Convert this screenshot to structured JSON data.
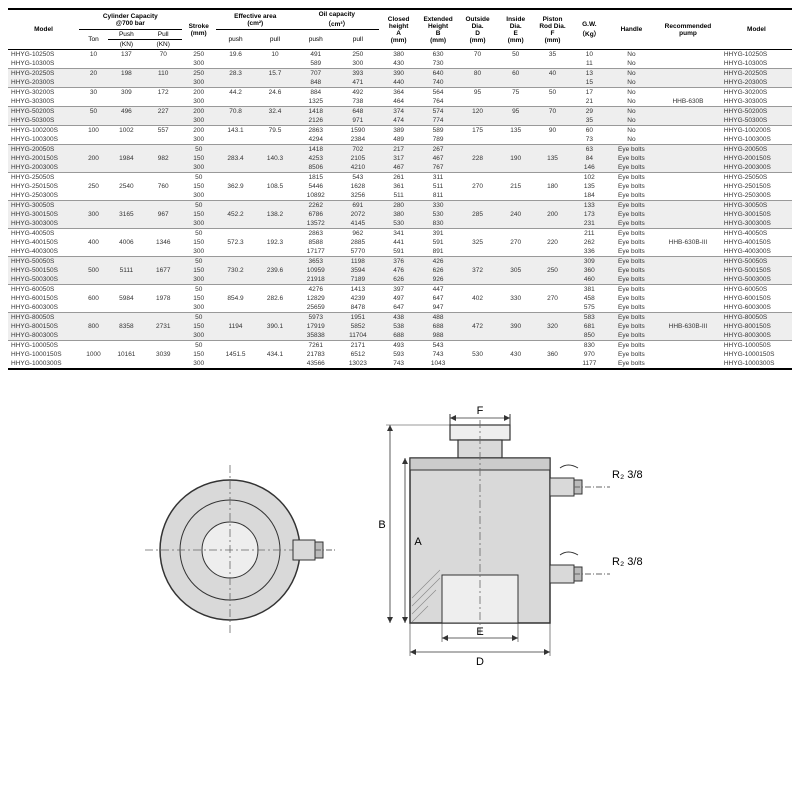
{
  "table": {
    "headers": {
      "model": "Model",
      "cap": "Cylinder Capacity",
      "cap_sub": "@700 bar",
      "ton": "Ton",
      "push": "Push",
      "push_u": "(KN)",
      "pull": "Pull",
      "pull_u": "(KN)",
      "stroke": "Stroke",
      "stroke_u": "(mm)",
      "eff": "Effective area",
      "eff_u": "(cm²)",
      "eff_push": "push",
      "eff_pull": "pull",
      "oil": "Oil capacity",
      "oil_u": "（cm³）",
      "oil_push": "push",
      "oil_pull": "pull",
      "closed": "Closed",
      "closed2": "height",
      "a": "A",
      "a_u": "(mm)",
      "ext": "Extended",
      "ext2": "Height",
      "b": "B",
      "b_u": "(mm)",
      "od": "Outside",
      "od2": "Dia.",
      "d": "D",
      "d_u": "(mm)",
      "id": "Inside",
      "id2": "Dia.",
      "e": "E",
      "e_u": "(mm)",
      "pr": "Piston",
      "pr2": "Rod Dia.",
      "f": "F",
      "f_u": "(mm)",
      "gw": "G.W.",
      "gw_u": "（Kg）",
      "handle": "Handle",
      "pump": "Recommended",
      "pump2": "pump"
    },
    "rows": [
      {
        "m": "HHYG-10250S",
        "ton": "10",
        "pk": "137",
        "pl": "70",
        "st": "250",
        "ep": "19.6",
        "el": "10",
        "op": "491",
        "ol": "250",
        "a": "380",
        "b": "630",
        "d": "70",
        "e": "50",
        "f": "35",
        "g": "10",
        "h": "No",
        "p": "",
        "shade": false,
        "gs": true
      },
      {
        "m": "HHYG-10300S",
        "ton": "",
        "pk": "",
        "pl": "",
        "st": "300",
        "ep": "",
        "el": "",
        "op": "589",
        "ol": "300",
        "a": "430",
        "b": "730",
        "d": "",
        "e": "",
        "f": "",
        "g": "11",
        "h": "No",
        "p": "",
        "shade": false,
        "gs": false
      },
      {
        "m": "HHYG-20250S",
        "ton": "20",
        "pk": "198",
        "pl": "110",
        "st": "250",
        "ep": "28.3",
        "el": "15.7",
        "op": "707",
        "ol": "393",
        "a": "390",
        "b": "640",
        "d": "80",
        "e": "60",
        "f": "40",
        "g": "13",
        "h": "No",
        "p": "",
        "shade": true,
        "gs": true
      },
      {
        "m": "HHYG-20300S",
        "ton": "",
        "pk": "",
        "pl": "",
        "st": "300",
        "ep": "",
        "el": "",
        "op": "848",
        "ol": "471",
        "a": "440",
        "b": "740",
        "d": "",
        "e": "",
        "f": "",
        "g": "15",
        "h": "No",
        "p": "",
        "shade": true,
        "gs": false
      },
      {
        "m": "HHYG-30200S",
        "ton": "30",
        "pk": "309",
        "pl": "172",
        "st": "200",
        "ep": "44.2",
        "el": "24.6",
        "op": "884",
        "ol": "492",
        "a": "364",
        "b": "564",
        "d": "95",
        "e": "75",
        "f": "50",
        "g": "17",
        "h": "No",
        "p": "",
        "shade": false,
        "gs": true
      },
      {
        "m": "HHYG-30300S",
        "ton": "",
        "pk": "",
        "pl": "",
        "st": "300",
        "ep": "",
        "el": "",
        "op": "1325",
        "ol": "738",
        "a": "464",
        "b": "764",
        "d": "",
        "e": "",
        "f": "",
        "g": "21",
        "h": "No",
        "p": "HHB-630B",
        "shade": false,
        "gs": false
      },
      {
        "m": "HHYG-50200S",
        "ton": "50",
        "pk": "496",
        "pl": "227",
        "st": "200",
        "ep": "70.8",
        "el": "32.4",
        "op": "1418",
        "ol": "648",
        "a": "374",
        "b": "574",
        "d": "120",
        "e": "95",
        "f": "70",
        "g": "29",
        "h": "No",
        "p": "",
        "shade": true,
        "gs": true
      },
      {
        "m": "HHYG-50300S",
        "ton": "",
        "pk": "",
        "pl": "",
        "st": "300",
        "ep": "",
        "el": "",
        "op": "2126",
        "ol": "971",
        "a": "474",
        "b": "774",
        "d": "",
        "e": "",
        "f": "",
        "g": "35",
        "h": "No",
        "p": "",
        "shade": true,
        "gs": false
      },
      {
        "m": "HHYG-100200S",
        "ton": "100",
        "pk": "1002",
        "pl": "557",
        "st": "200",
        "ep": "143.1",
        "el": "79.5",
        "op": "2863",
        "ol": "1590",
        "a": "389",
        "b": "589",
        "d": "175",
        "e": "135",
        "f": "90",
        "g": "60",
        "h": "No",
        "p": "",
        "shade": false,
        "gs": true
      },
      {
        "m": "HHYG-100300S",
        "ton": "",
        "pk": "",
        "pl": "",
        "st": "300",
        "ep": "",
        "el": "",
        "op": "4294",
        "ol": "2384",
        "a": "489",
        "b": "789",
        "d": "",
        "e": "",
        "f": "",
        "g": "73",
        "h": "No",
        "p": "",
        "shade": false,
        "gs": false
      },
      {
        "m": "HHYG-20050S",
        "ton": "",
        "pk": "",
        "pl": "",
        "st": "50",
        "ep": "",
        "el": "",
        "op": "1418",
        "ol": "702",
        "a": "217",
        "b": "267",
        "d": "",
        "e": "",
        "f": "",
        "g": "63",
        "h": "Eye bolts",
        "p": "",
        "shade": true,
        "gs": true
      },
      {
        "m": "HHYG-200150S",
        "ton": "200",
        "pk": "1984",
        "pl": "982",
        "st": "150",
        "ep": "283.4",
        "el": "140.3",
        "op": "4253",
        "ol": "2105",
        "a": "317",
        "b": "467",
        "d": "228",
        "e": "190",
        "f": "135",
        "g": "84",
        "h": "Eye bolts",
        "p": "",
        "shade": true,
        "gs": false
      },
      {
        "m": "HHYG-200300S",
        "ton": "",
        "pk": "",
        "pl": "",
        "st": "300",
        "ep": "",
        "el": "",
        "op": "8506",
        "ol": "4210",
        "a": "467",
        "b": "767",
        "d": "",
        "e": "",
        "f": "",
        "g": "146",
        "h": "Eye bolts",
        "p": "",
        "shade": true,
        "gs": false
      },
      {
        "m": "HHYG-25050S",
        "ton": "",
        "pk": "",
        "pl": "",
        "st": "50",
        "ep": "",
        "el": "",
        "op": "1815",
        "ol": "543",
        "a": "261",
        "b": "311",
        "d": "",
        "e": "",
        "f": "",
        "g": "102",
        "h": "Eye bolts",
        "p": "",
        "shade": false,
        "gs": true
      },
      {
        "m": "HHYG-250150S",
        "ton": "250",
        "pk": "2540",
        "pl": "760",
        "st": "150",
        "ep": "362.9",
        "el": "108.5",
        "op": "5446",
        "ol": "1628",
        "a": "361",
        "b": "511",
        "d": "270",
        "e": "215",
        "f": "180",
        "g": "135",
        "h": "Eye bolts",
        "p": "",
        "shade": false,
        "gs": false
      },
      {
        "m": "HHYG-250300S",
        "ton": "",
        "pk": "",
        "pl": "",
        "st": "300",
        "ep": "",
        "el": "",
        "op": "10892",
        "ol": "3256",
        "a": "511",
        "b": "811",
        "d": "",
        "e": "",
        "f": "",
        "g": "184",
        "h": "Eye bolts",
        "p": "",
        "shade": false,
        "gs": false
      },
      {
        "m": "HHYG-30050S",
        "ton": "",
        "pk": "",
        "pl": "",
        "st": "50",
        "ep": "",
        "el": "",
        "op": "2262",
        "ol": "691",
        "a": "280",
        "b": "330",
        "d": "",
        "e": "",
        "f": "",
        "g": "133",
        "h": "Eye bolts",
        "p": "",
        "shade": true,
        "gs": true
      },
      {
        "m": "HHYG-300150S",
        "ton": "300",
        "pk": "3165",
        "pl": "967",
        "st": "150",
        "ep": "452.2",
        "el": "138.2",
        "op": "6786",
        "ol": "2072",
        "a": "380",
        "b": "530",
        "d": "285",
        "e": "240",
        "f": "200",
        "g": "173",
        "h": "Eye bolts",
        "p": "",
        "shade": true,
        "gs": false
      },
      {
        "m": "HHYG-300300S",
        "ton": "",
        "pk": "",
        "pl": "",
        "st": "300",
        "ep": "",
        "el": "",
        "op": "13572",
        "ol": "4145",
        "a": "530",
        "b": "830",
        "d": "",
        "e": "",
        "f": "",
        "g": "231",
        "h": "Eye bolts",
        "p": "",
        "shade": true,
        "gs": false
      },
      {
        "m": "HHYG-40050S",
        "ton": "",
        "pk": "",
        "pl": "",
        "st": "50",
        "ep": "",
        "el": "",
        "op": "2863",
        "ol": "962",
        "a": "341",
        "b": "391",
        "d": "",
        "e": "",
        "f": "",
        "g": "211",
        "h": "Eye bolts",
        "p": "",
        "shade": false,
        "gs": true
      },
      {
        "m": "HHYG-400150S",
        "ton": "400",
        "pk": "4006",
        "pl": "1346",
        "st": "150",
        "ep": "572.3",
        "el": "192.3",
        "op": "8588",
        "ol": "2885",
        "a": "441",
        "b": "591",
        "d": "325",
        "e": "270",
        "f": "220",
        "g": "262",
        "h": "Eye bolts",
        "p": "HHB-630B-III",
        "shade": false,
        "gs": false
      },
      {
        "m": "HHYG-400300S",
        "ton": "",
        "pk": "",
        "pl": "",
        "st": "300",
        "ep": "",
        "el": "",
        "op": "17177",
        "ol": "5770",
        "a": "591",
        "b": "891",
        "d": "",
        "e": "",
        "f": "",
        "g": "336",
        "h": "Eye bolts",
        "p": "",
        "shade": false,
        "gs": false
      },
      {
        "m": "HHYG-50050S",
        "ton": "",
        "pk": "",
        "pl": "",
        "st": "50",
        "ep": "",
        "el": "",
        "op": "3653",
        "ol": "1198",
        "a": "376",
        "b": "426",
        "d": "",
        "e": "",
        "f": "",
        "g": "309",
        "h": "Eye bolts",
        "p": "",
        "shade": true,
        "gs": true
      },
      {
        "m": "HHYG-500150S",
        "ton": "500",
        "pk": "5111",
        "pl": "1677",
        "st": "150",
        "ep": "730.2",
        "el": "239.6",
        "op": "10959",
        "ol": "3594",
        "a": "476",
        "b": "626",
        "d": "372",
        "e": "305",
        "f": "250",
        "g": "360",
        "h": "Eye bolts",
        "p": "",
        "shade": true,
        "gs": false
      },
      {
        "m": "HHYG-500300S",
        "ton": "",
        "pk": "",
        "pl": "",
        "st": "300",
        "ep": "",
        "el": "",
        "op": "21918",
        "ol": "7189",
        "a": "626",
        "b": "926",
        "d": "",
        "e": "",
        "f": "",
        "g": "460",
        "h": "Eye bolts",
        "p": "",
        "shade": true,
        "gs": false
      },
      {
        "m": "HHYG-60050S",
        "ton": "",
        "pk": "",
        "pl": "",
        "st": "50",
        "ep": "",
        "el": "",
        "op": "4276",
        "ol": "1413",
        "a": "397",
        "b": "447",
        "d": "",
        "e": "",
        "f": "",
        "g": "381",
        "h": "Eye bolts",
        "p": "",
        "shade": false,
        "gs": true
      },
      {
        "m": "HHYG-600150S",
        "ton": "600",
        "pk": "5984",
        "pl": "1978",
        "st": "150",
        "ep": "854.9",
        "el": "282.6",
        "op": "12829",
        "ol": "4239",
        "a": "497",
        "b": "647",
        "d": "402",
        "e": "330",
        "f": "270",
        "g": "458",
        "h": "Eye bolts",
        "p": "",
        "shade": false,
        "gs": false
      },
      {
        "m": "HHYG-600300S",
        "ton": "",
        "pk": "",
        "pl": "",
        "st": "300",
        "ep": "",
        "el": "",
        "op": "25659",
        "ol": "8478",
        "a": "647",
        "b": "947",
        "d": "",
        "e": "",
        "f": "",
        "g": "575",
        "h": "Eye bolts",
        "p": "",
        "shade": false,
        "gs": false
      },
      {
        "m": "HHYG-80050S",
        "ton": "",
        "pk": "",
        "pl": "",
        "st": "50",
        "ep": "",
        "el": "",
        "op": "5973",
        "ol": "1951",
        "a": "438",
        "b": "488",
        "d": "",
        "e": "",
        "f": "",
        "g": "583",
        "h": "Eye bolts",
        "p": "",
        "shade": true,
        "gs": true
      },
      {
        "m": "HHYG-800150S",
        "ton": "800",
        "pk": "8358",
        "pl": "2731",
        "st": "150",
        "ep": "1194",
        "el": "390.1",
        "op": "17919",
        "ol": "5852",
        "a": "538",
        "b": "688",
        "d": "472",
        "e": "390",
        "f": "320",
        "g": "681",
        "h": "Eye bolts",
        "p": "HHB-630B-III",
        "shade": true,
        "gs": false
      },
      {
        "m": "HHYG-800300S",
        "ton": "",
        "pk": "",
        "pl": "",
        "st": "300",
        "ep": "",
        "el": "",
        "op": "35838",
        "ol": "11704",
        "a": "688",
        "b": "988",
        "d": "",
        "e": "",
        "f": "",
        "g": "850",
        "h": "Eye bolts",
        "p": "",
        "shade": true,
        "gs": false
      },
      {
        "m": "HHYG-100050S",
        "ton": "",
        "pk": "",
        "pl": "",
        "st": "50",
        "ep": "",
        "el": "",
        "op": "7261",
        "ol": "2171",
        "a": "493",
        "b": "543",
        "d": "",
        "e": "",
        "f": "",
        "g": "830",
        "h": "Eye bolts",
        "p": "",
        "shade": false,
        "gs": true
      },
      {
        "m": "HHYG-1000150S",
        "ton": "1000",
        "pk": "10161",
        "pl": "3039",
        "st": "150",
        "ep": "1451.5",
        "el": "434.1",
        "op": "21783",
        "ol": "6512",
        "a": "593",
        "b": "743",
        "d": "530",
        "e": "430",
        "f": "360",
        "g": "970",
        "h": "Eye bolts",
        "p": "",
        "shade": false,
        "gs": false
      },
      {
        "m": "HHYG-1000300S",
        "ton": "",
        "pk": "",
        "pl": "",
        "st": "300",
        "ep": "",
        "el": "",
        "op": "43566",
        "ol": "13023",
        "a": "743",
        "b": "1043",
        "d": "",
        "e": "",
        "f": "",
        "g": "1177",
        "h": "Eye bolts",
        "p": "",
        "shade": false,
        "gs": false
      }
    ]
  },
  "diagram": {
    "labels": {
      "f": "F",
      "b": "B",
      "a": "A",
      "e": "E",
      "d": "D",
      "r": "R₂ 3/8"
    },
    "colors": {
      "fill": "#d9d9d9",
      "stroke": "#333333",
      "dash": "#666666"
    }
  }
}
